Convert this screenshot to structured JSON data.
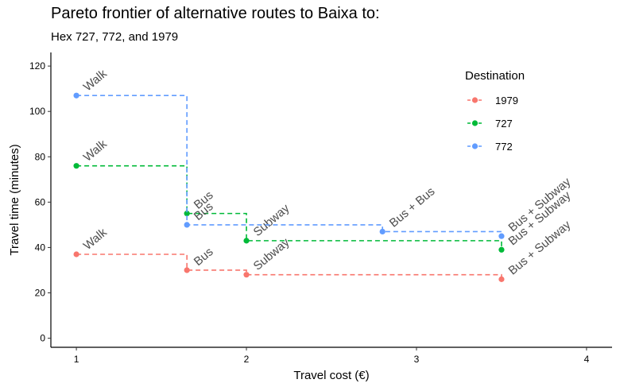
{
  "chart_data": {
    "type": "line",
    "title": "Pareto frontier of alternative routes to Baixa to:",
    "subtitle": "Hex 727, 772, and 1979",
    "xlabel": "Travel cost (€)",
    "ylabel": "Travel time (minutes)",
    "xlim": [
      0.85,
      4.15
    ],
    "ylim": [
      -4,
      126
    ],
    "x_ticks": [
      1,
      2,
      3,
      4
    ],
    "y_ticks": [
      0,
      20,
      40,
      60,
      80,
      100,
      120
    ],
    "grid": false,
    "step": "hv",
    "legend": {
      "title": "Destination",
      "position": "top-right",
      "entries": [
        "1979",
        "727",
        "772"
      ]
    },
    "series": [
      {
        "name": "1979",
        "color": "#F8766D",
        "points": [
          {
            "x": 1.0,
            "y": 37,
            "label": "Walk"
          },
          {
            "x": 1.65,
            "y": 30,
            "label": "Bus"
          },
          {
            "x": 2.0,
            "y": 28,
            "label": "Subway"
          },
          {
            "x": 3.5,
            "y": 26,
            "label": "Bus + Subway"
          }
        ]
      },
      {
        "name": "727",
        "color": "#00BA38",
        "points": [
          {
            "x": 1.0,
            "y": 76,
            "label": "Walk"
          },
          {
            "x": 1.65,
            "y": 55,
            "label": "Bus"
          },
          {
            "x": 2.0,
            "y": 43,
            "label": "Subway"
          },
          {
            "x": 3.5,
            "y": 39,
            "label": "Bus + Subway"
          }
        ]
      },
      {
        "name": "772",
        "color": "#619CFF",
        "points": [
          {
            "x": 1.0,
            "y": 107,
            "label": "Walk"
          },
          {
            "x": 1.65,
            "y": 50,
            "label": "Bus"
          },
          {
            "x": 2.8,
            "y": 47,
            "label": "Bus + Bus"
          },
          {
            "x": 3.5,
            "y": 45,
            "label": "Bus + Subway"
          }
        ]
      }
    ]
  }
}
